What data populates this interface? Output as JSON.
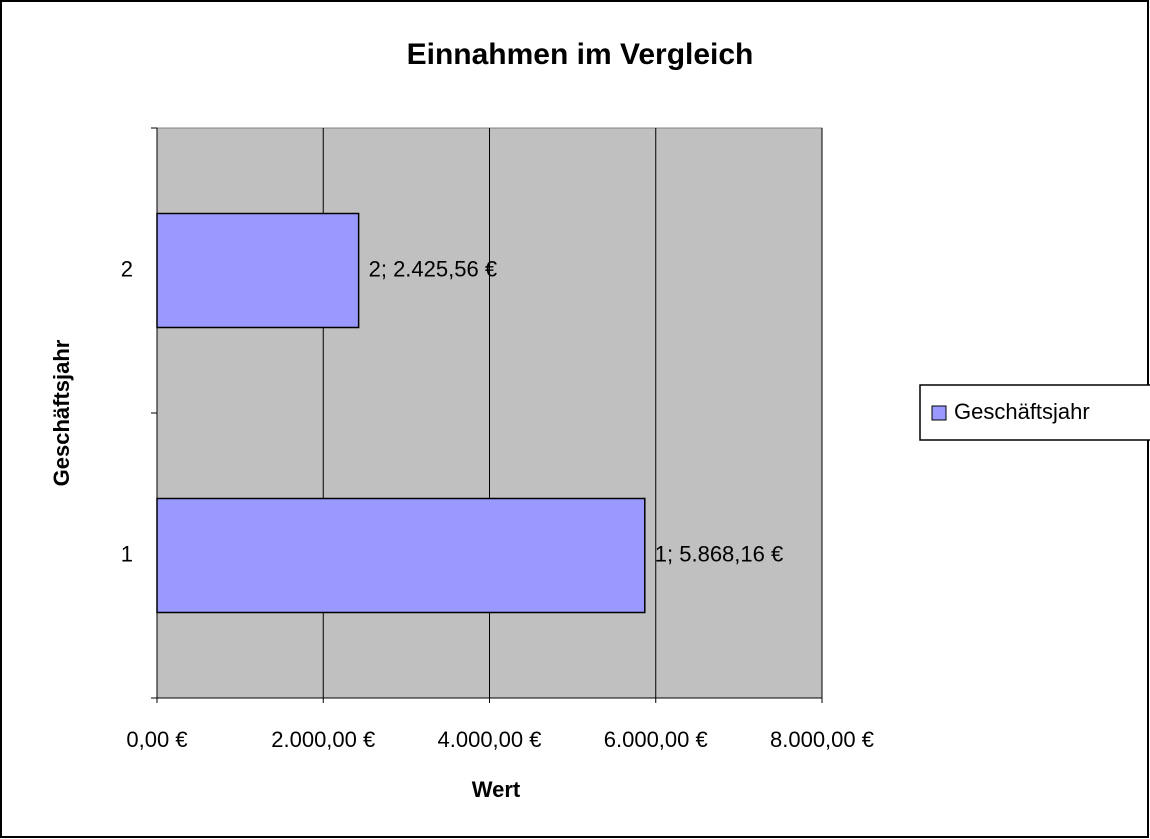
{
  "chart_data": {
    "type": "barh",
    "title": "Einnahmen im Vergleich",
    "xlabel": "Wert",
    "ylabel": "Geschäftsjahr",
    "categories": [
      "1",
      "2"
    ],
    "series": [
      {
        "name": "Geschäftsjahr",
        "color": "#9999ff",
        "values": [
          5868.16,
          2425.56
        ],
        "value_labels": [
          "1; 5.868,16 €",
          "2; 2.425,56 €"
        ]
      }
    ],
    "xlim": [
      0,
      8000
    ],
    "xticks": [
      {
        "value": 0,
        "label": "0,00 €"
      },
      {
        "value": 2000,
        "label": "2.000,00 €"
      },
      {
        "value": 4000,
        "label": "4.000,00 €"
      },
      {
        "value": 6000,
        "label": "6.000,00 €"
      },
      {
        "value": 8000,
        "label": "8.000,00 €"
      }
    ],
    "grid": true,
    "legend": "right",
    "plot_background": "#c0c0c0"
  }
}
